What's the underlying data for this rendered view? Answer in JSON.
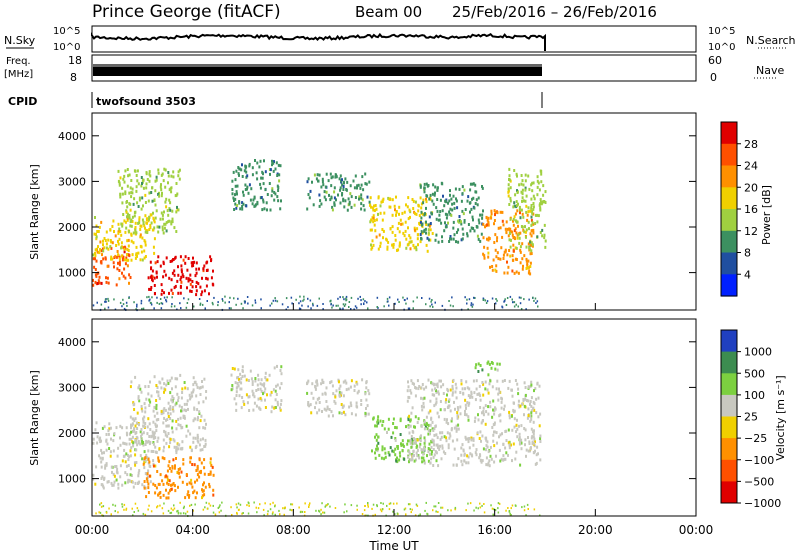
{
  "header": {
    "station": "Prince George (fitACF)",
    "beam": "Beam 00",
    "dates": "25/Feb/2016 – 26/Feb/2016"
  },
  "strips": {
    "nsky": {
      "label": "N.Sky",
      "tick_top": "10^5",
      "tick_bot": "10^0"
    },
    "nsearch": {
      "label": "N.Search",
      "tick_top": "10^5",
      "tick_bot": "10^0"
    },
    "freq": {
      "label1": "Freq.",
      "label2": "[MHz]",
      "tick_top": "18",
      "tick_bot": "8"
    },
    "nave": {
      "label": "Nave",
      "tick_top": "60",
      "tick_bot": "0"
    },
    "cpid": {
      "label": "CPID",
      "value": "twofsound 3503"
    }
  },
  "chart_data": [
    {
      "type": "heatmap",
      "ylabel": "Slant Range [km]",
      "ylim": [
        180,
        4500
      ],
      "yticks": [
        1000,
        2000,
        3000,
        4000
      ],
      "xlim": [
        0,
        24
      ],
      "colorbar": {
        "label": "Power [dB]",
        "ticks": [
          "28",
          "24",
          "20",
          "16",
          "12",
          "8",
          "4"
        ],
        "colors": [
          "#e00000",
          "#ff5000",
          "#ff9000",
          "#f0d000",
          "#a0d040",
          "#3c9060",
          "#204fa0",
          "#0020ff"
        ]
      },
      "regions": [
        {
          "t0": 0.0,
          "t1": 1.5,
          "r0": 750,
          "r1": 1600,
          "level": 24
        },
        {
          "t0": 0.0,
          "t1": 2.5,
          "r0": 1300,
          "r1": 2300,
          "level": 16
        },
        {
          "t0": 2.2,
          "t1": 4.8,
          "r0": 550,
          "r1": 1400,
          "level": 28
        },
        {
          "t0": 1.0,
          "t1": 3.5,
          "r0": 1900,
          "r1": 3300,
          "level": 10
        },
        {
          "t0": 5.5,
          "t1": 7.5,
          "r0": 2400,
          "r1": 3500,
          "level": 6
        },
        {
          "t0": 8.5,
          "t1": 11.0,
          "r0": 2400,
          "r1": 3200,
          "level": 6
        },
        {
          "t0": 11.0,
          "t1": 13.5,
          "r0": 1500,
          "r1": 2700,
          "level": 16
        },
        {
          "t0": 13.0,
          "t1": 15.5,
          "r0": 1700,
          "r1": 3000,
          "level": 8
        },
        {
          "t0": 15.5,
          "t1": 17.5,
          "r0": 1000,
          "r1": 2400,
          "level": 20
        },
        {
          "t0": 16.5,
          "t1": 18.0,
          "r0": 1500,
          "r1": 3300,
          "level": 12
        }
      ]
    },
    {
      "type": "heatmap",
      "ylabel": "Slant Range [km]",
      "ylim": [
        180,
        4500
      ],
      "yticks": [
        1000,
        2000,
        3000,
        4000
      ],
      "xlim": [
        0,
        24
      ],
      "xticks": [
        "00:00",
        "04:00",
        "08:00",
        "12:00",
        "16:00",
        "20:00",
        "00:00"
      ],
      "xlabel": "Time UT",
      "colorbar": {
        "label": "Velocity [m s⁻¹]",
        "ticks": [
          "1000",
          "500",
          "100",
          "25",
          "−25",
          "−100",
          "−500",
          "−1000"
        ],
        "colors": [
          "#2040c0",
          "#3c8c50",
          "#7cd040",
          "#c8c8c0",
          "#f0d000",
          "#ff9000",
          "#ff5000",
          "#e00000"
        ]
      },
      "regions": [
        {
          "t0": 0.0,
          "t1": 2.5,
          "r0": 800,
          "r1": 2300,
          "velocity": 0
        },
        {
          "t0": 2.0,
          "t1": 4.8,
          "r0": 600,
          "r1": 1500,
          "velocity": -100
        },
        {
          "t0": 1.5,
          "t1": 4.5,
          "r0": 1600,
          "r1": 3300,
          "velocity": 0
        },
        {
          "t0": 5.5,
          "t1": 7.5,
          "r0": 2500,
          "r1": 3500,
          "velocity": 0
        },
        {
          "t0": 8.5,
          "t1": 11.0,
          "r0": 2400,
          "r1": 3200,
          "velocity": 0
        },
        {
          "t0": 11.0,
          "t1": 13.5,
          "r0": 1400,
          "r1": 2400,
          "velocity": 100
        },
        {
          "t0": 12.5,
          "t1": 17.8,
          "r0": 1300,
          "r1": 3200,
          "velocity": 0
        },
        {
          "t0": 15.2,
          "t1": 16.2,
          "r0": 3300,
          "r1": 3600,
          "velocity": 100
        }
      ]
    }
  ]
}
